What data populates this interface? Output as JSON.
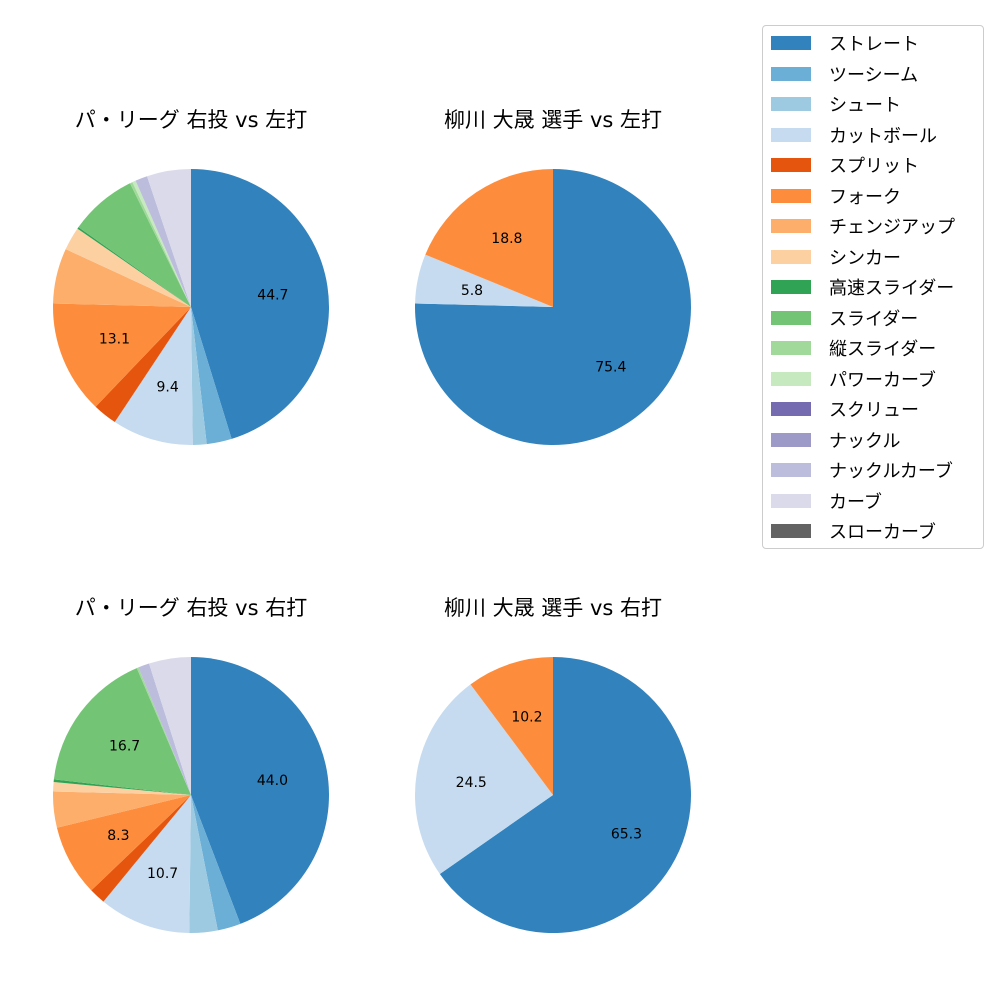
{
  "legend": {
    "items": [
      {
        "label": "ストレート",
        "color": "#3182bd"
      },
      {
        "label": "ツーシーム",
        "color": "#6baed6"
      },
      {
        "label": "シュート",
        "color": "#9ecae1"
      },
      {
        "label": "カットボール",
        "color": "#c6dbef"
      },
      {
        "label": "スプリット",
        "color": "#e6550d"
      },
      {
        "label": "フォーク",
        "color": "#fd8d3c"
      },
      {
        "label": "チェンジアップ",
        "color": "#fdae6b"
      },
      {
        "label": "シンカー",
        "color": "#fdd0a2"
      },
      {
        "label": "高速スライダー",
        "color": "#31a354"
      },
      {
        "label": "スライダー",
        "color": "#74c476"
      },
      {
        "label": "縦スライダー",
        "color": "#a1d99b"
      },
      {
        "label": "パワーカーブ",
        "color": "#c7e9c0"
      },
      {
        "label": "スクリュー",
        "color": "#756bb1"
      },
      {
        "label": "ナックル",
        "color": "#9e9ac8"
      },
      {
        "label": "ナックルカーブ",
        "color": "#bcbddc"
      },
      {
        "label": "カーブ",
        "color": "#dadaeb"
      },
      {
        "label": "スローカーブ",
        "color": "#636363"
      }
    ]
  },
  "chart_data": [
    {
      "type": "pie",
      "title": "パ・リーグ 右投 vs 左打",
      "slices": [
        {
          "label": "ストレート",
          "value": 44.7,
          "shown": "44.7"
        },
        {
          "label": "ツーシーム",
          "value": 2.9
        },
        {
          "label": "シュート",
          "value": 1.6
        },
        {
          "label": "カットボール",
          "value": 9.4,
          "shown": "9.4"
        },
        {
          "label": "スプリット",
          "value": 2.8
        },
        {
          "label": "フォーク",
          "value": 13.1,
          "shown": "13.1"
        },
        {
          "label": "チェンジアップ",
          "value": 6.4
        },
        {
          "label": "シンカー",
          "value": 2.7
        },
        {
          "label": "高速スライダー",
          "value": 0.2
        },
        {
          "label": "スライダー",
          "value": 7.8
        },
        {
          "label": "縦スライダー",
          "value": 0.3
        },
        {
          "label": "パワーカーブ",
          "value": 0.4
        },
        {
          "label": "ナックルカーブ",
          "value": 1.4
        },
        {
          "label": "カーブ",
          "value": 5.1
        }
      ]
    },
    {
      "type": "pie",
      "title": "柳川 大晟 選手 vs 左打",
      "slices": [
        {
          "label": "ストレート",
          "value": 75.4,
          "shown": "75.4"
        },
        {
          "label": "カットボール",
          "value": 5.8,
          "shown": "5.8"
        },
        {
          "label": "フォーク",
          "value": 18.8,
          "shown": "18.8"
        }
      ]
    },
    {
      "type": "pie",
      "title": "パ・リーグ 右投 vs 右打",
      "slices": [
        {
          "label": "ストレート",
          "value": 44.0,
          "shown": "44.0"
        },
        {
          "label": "ツーシーム",
          "value": 2.7
        },
        {
          "label": "シュート",
          "value": 3.3
        },
        {
          "label": "カットボール",
          "value": 10.7,
          "shown": "10.7"
        },
        {
          "label": "スプリット",
          "value": 1.9
        },
        {
          "label": "フォーク",
          "value": 8.3,
          "shown": "8.3"
        },
        {
          "label": "チェンジアップ",
          "value": 4.2
        },
        {
          "label": "シンカー",
          "value": 1.1
        },
        {
          "label": "高速スライダー",
          "value": 0.3
        },
        {
          "label": "スライダー",
          "value": 16.7,
          "shown": "16.7"
        },
        {
          "label": "縦スライダー",
          "value": 0.2
        },
        {
          "label": "ナックルカーブ",
          "value": 1.3
        },
        {
          "label": "カーブ",
          "value": 4.9
        }
      ]
    },
    {
      "type": "pie",
      "title": "柳川 大晟 選手 vs 右打",
      "slices": [
        {
          "label": "ストレート",
          "value": 65.3,
          "shown": "65.3"
        },
        {
          "label": "カットボール",
          "value": 24.5,
          "shown": "24.5"
        },
        {
          "label": "フォーク",
          "value": 10.2,
          "shown": "10.2"
        }
      ]
    }
  ]
}
